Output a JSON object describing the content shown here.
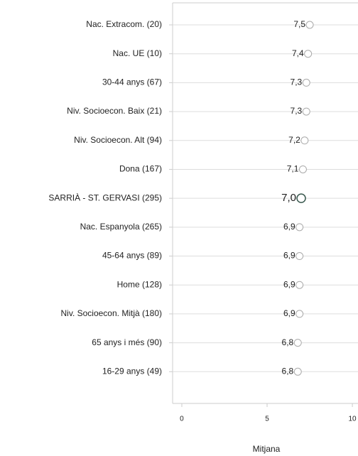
{
  "chart_data": {
    "type": "dot",
    "x_label": "Mitjana",
    "categories": [
      "Nac. Extracom. (20)",
      "Nac. UE (10)",
      "30-44 anys (67)",
      "Niv. Socioecon. Baix (21)",
      "Niv. Socioecon. Alt (94)",
      "Dona (167)",
      "SARRIÀ - ST. GERVASI (295)",
      "Nac. Espanyola (265)",
      "45-64 anys (89)",
      "Home (128)",
      "Niv. Socioecon. Mitjà (180)",
      "65 anys i més (90)",
      "16-29 anys (49)"
    ],
    "values": [
      7.5,
      7.4,
      7.3,
      7.3,
      7.2,
      7.1,
      7.0,
      6.9,
      6.9,
      6.9,
      6.9,
      6.8,
      6.8
    ],
    "value_labels": [
      "7,5",
      "7,4",
      "7,3",
      "7,3",
      "7,2",
      "7,1",
      "7,0",
      "6,9",
      "6,9",
      "6,9",
      "6,9",
      "6,8",
      "6,8"
    ],
    "colors": [
      "#aaaaaa",
      "#aaaaaa",
      "#aaaaaa",
      "#aaaaaa",
      "#aaaaaa",
      "#aaaaaa",
      "#e03c31",
      "#aaaaaa",
      "#aaaaaa",
      "#aaaaaa",
      "#aaaaaa",
      "#aaaaaa",
      "#aaaaaa"
    ],
    "xlim": [
      -0.54,
      10.33
    ],
    "xticks": [
      0,
      5,
      10
    ],
    "grid": true
  }
}
